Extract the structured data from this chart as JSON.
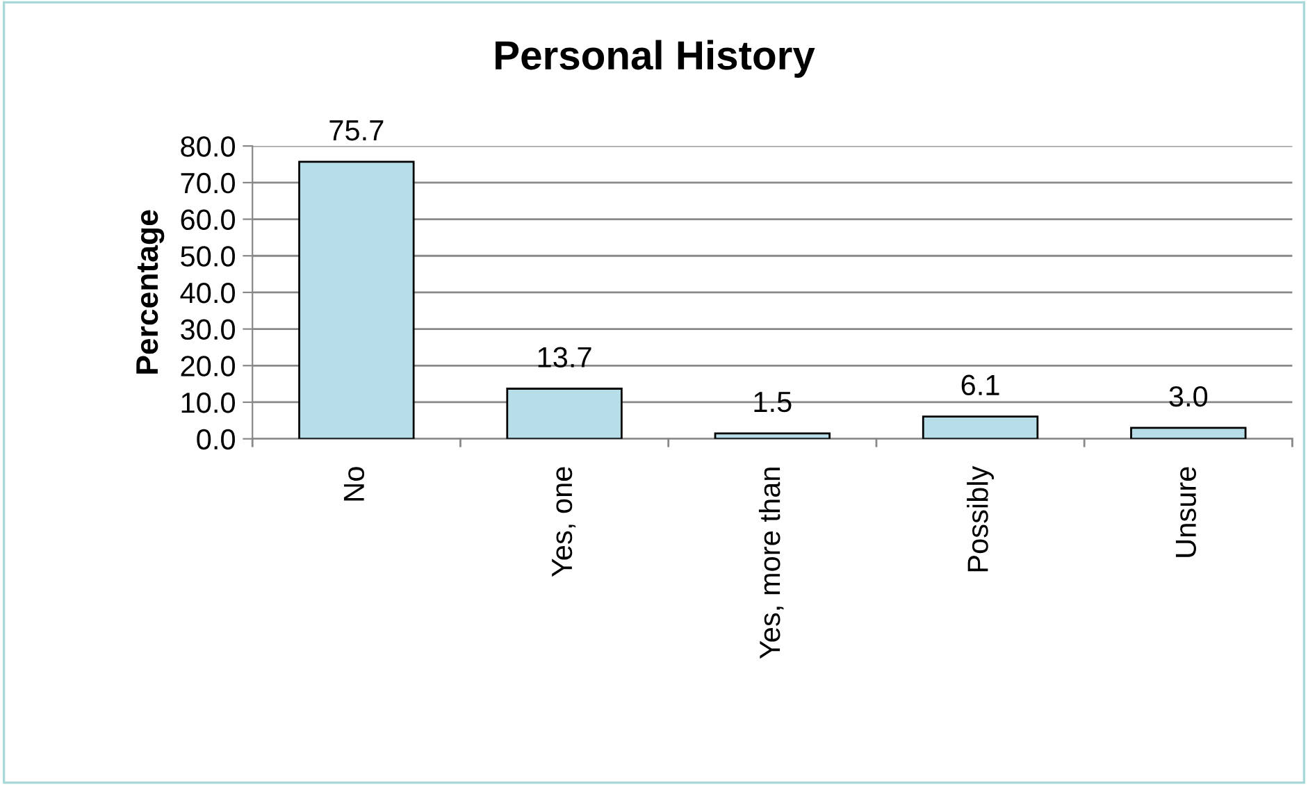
{
  "chart_data": {
    "type": "bar",
    "title": "Personal History",
    "ylabel": "Percentage",
    "categories": [
      "No",
      "Yes, one",
      "Yes, more than",
      "Possibly",
      "Unsure"
    ],
    "values": [
      75.7,
      13.7,
      1.5,
      6.1,
      3.0
    ],
    "value_labels": [
      "75.7",
      "13.7",
      "1.5",
      "6.1",
      "3.0"
    ],
    "color": "#b7dee8",
    "ylim": [
      0,
      80
    ],
    "yticks": [
      {
        "value": 0,
        "label": "0.0"
      },
      {
        "value": 10,
        "label": "10.0"
      },
      {
        "value": 20,
        "label": "20.0"
      },
      {
        "value": 30,
        "label": "30.0"
      },
      {
        "value": 40,
        "label": "40.0"
      },
      {
        "value": 50,
        "label": "50.0"
      },
      {
        "value": 60,
        "label": "60.0"
      },
      {
        "value": 70,
        "label": "70.0"
      },
      {
        "value": 80,
        "label": "80.0"
      }
    ],
    "grid": "y",
    "legend": false
  }
}
